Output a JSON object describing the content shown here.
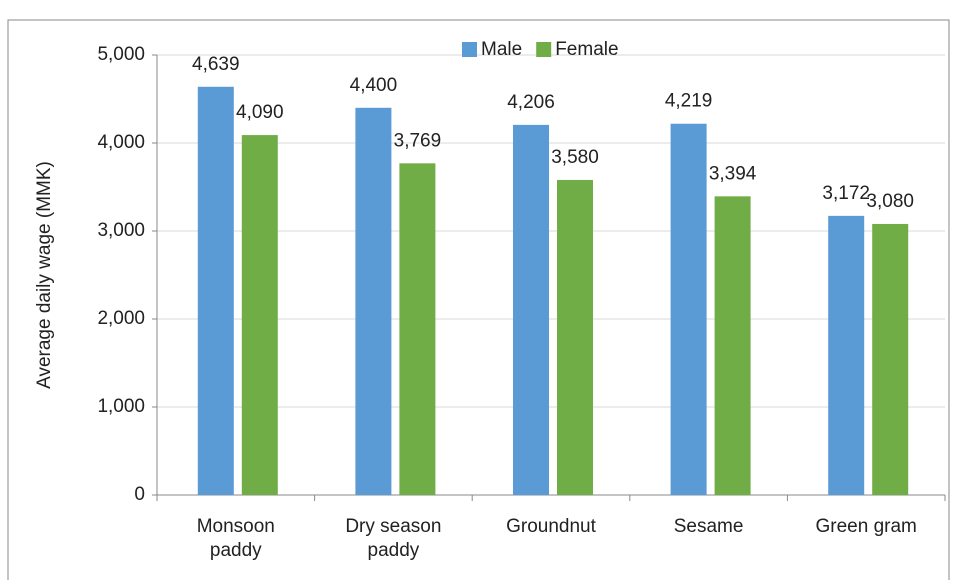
{
  "chart_data": {
    "type": "bar",
    "y_label": "Average daily wage (MMK)",
    "categories": [
      "Monsoon paddy",
      "Dry season paddy",
      "Groundnut",
      "Sesame",
      "Green gram"
    ],
    "series": [
      {
        "name": "Male",
        "color": "#5b9bd5",
        "values": [
          4639,
          4400,
          4206,
          4219,
          3172
        ],
        "value_labels": [
          "4,639",
          "4,400",
          "4,206",
          "4,219",
          "3,172"
        ]
      },
      {
        "name": "Female",
        "color": "#70ad47",
        "values": [
          4090,
          3769,
          3580,
          3394,
          3080
        ],
        "value_labels": [
          "4,090",
          "3,769",
          "3,580",
          "3,394",
          "3,080"
        ]
      }
    ],
    "ylim": [
      0,
      5000
    ],
    "yticks": [
      0,
      {
        "value": 1000,
        "label": "1,000"
      },
      {
        "value": 2000,
        "label": "2,000"
      },
      {
        "value": 3000,
        "label": "3,000"
      },
      {
        "value": 4000,
        "label": "4,000"
      },
      {
        "value": 5000,
        "label": "5,000"
      }
    ],
    "grid": true,
    "legend": "top"
  }
}
